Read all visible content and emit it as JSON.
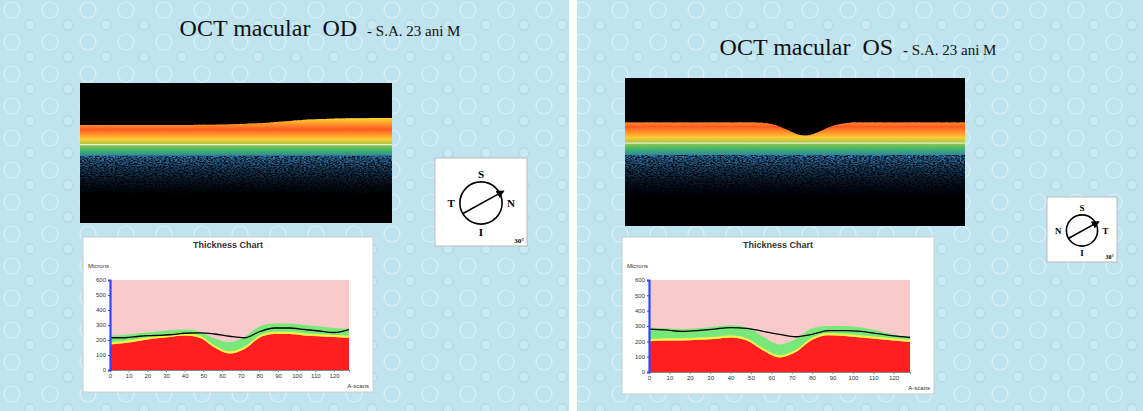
{
  "slides": [
    {
      "title": "OCT macular  OD",
      "subtitle": "- S.A. 23 ani M",
      "compass": {
        "top": "S",
        "bottom": "I",
        "left": "T",
        "right": "N",
        "angle": "30°"
      }
    },
    {
      "title": "OCT macular  OS",
      "subtitle": "- S.A. 23 ani M",
      "compass": {
        "top": "S",
        "bottom": "I",
        "left": "N",
        "right": "T",
        "angle": "30°"
      }
    }
  ],
  "chart_data": [
    {
      "type": "area",
      "title": "Thickness Chart",
      "y_label": "Microns",
      "x_label": "A-scans",
      "x": [
        0,
        8,
        16,
        24,
        32,
        40,
        48,
        56,
        64,
        72,
        80,
        88,
        96,
        104,
        112,
        120,
        128
      ],
      "xlim": [
        0,
        128
      ],
      "ylim": [
        0,
        600
      ],
      "xticks": [
        0,
        10,
        20,
        30,
        40,
        50,
        60,
        70,
        80,
        90,
        100,
        110,
        120
      ],
      "yticks": [
        0,
        100,
        200,
        300,
        400,
        500,
        600
      ],
      "stacked": true,
      "series": [
        {
          "type": "area",
          "color": "#ff1f1f",
          "values": [
            170,
            180,
            195,
            210,
            220,
            230,
            215,
            150,
            110,
            140,
            215,
            240,
            240,
            230,
            225,
            220,
            215
          ]
        },
        {
          "type": "area",
          "color": "#f5f53a",
          "values": [
            15,
            15,
            15,
            15,
            15,
            15,
            15,
            15,
            15,
            15,
            15,
            15,
            15,
            15,
            15,
            15,
            15
          ]
        },
        {
          "type": "area",
          "color": "#78e878",
          "values": [
            45,
            40,
            35,
            30,
            30,
            25,
            25,
            45,
            60,
            65,
            60,
            55,
            55,
            55,
            50,
            45,
            45
          ]
        },
        {
          "type": "line",
          "color": "#000000",
          "values": [
            215,
            215,
            225,
            230,
            235,
            245,
            248,
            240,
            225,
            215,
            255,
            280,
            280,
            270,
            260,
            250,
            270
          ]
        }
      ]
    },
    {
      "type": "area",
      "title": "Thickness Chart",
      "y_label": "Microns",
      "x_label": "A-scans",
      "x": [
        0,
        8,
        16,
        24,
        32,
        40,
        48,
        56,
        64,
        72,
        80,
        88,
        96,
        104,
        112,
        120,
        128
      ],
      "xlim": [
        0,
        128
      ],
      "ylim": [
        0,
        600
      ],
      "xticks": [
        0,
        10,
        20,
        30,
        40,
        50,
        60,
        70,
        80,
        90,
        100,
        110,
        120
      ],
      "yticks": [
        0,
        100,
        200,
        300,
        400,
        500,
        600
      ],
      "stacked": true,
      "series": [
        {
          "type": "area",
          "color": "#ff1f1f",
          "values": [
            200,
            205,
            205,
            210,
            215,
            225,
            205,
            140,
            95,
            130,
            210,
            240,
            235,
            225,
            215,
            205,
            195
          ]
        },
        {
          "type": "area",
          "color": "#f5f53a",
          "values": [
            15,
            15,
            15,
            15,
            15,
            15,
            15,
            15,
            15,
            15,
            15,
            15,
            15,
            15,
            15,
            15,
            15
          ]
        },
        {
          "type": "area",
          "color": "#78e878",
          "values": [
            75,
            65,
            60,
            60,
            65,
            65,
            70,
            75,
            70,
            70,
            60,
            45,
            50,
            50,
            40,
            25,
            20
          ]
        },
        {
          "type": "line",
          "color": "#000000",
          "values": [
            280,
            275,
            265,
            270,
            280,
            290,
            285,
            265,
            245,
            230,
            245,
            270,
            270,
            265,
            250,
            235,
            225
          ]
        }
      ]
    }
  ]
}
